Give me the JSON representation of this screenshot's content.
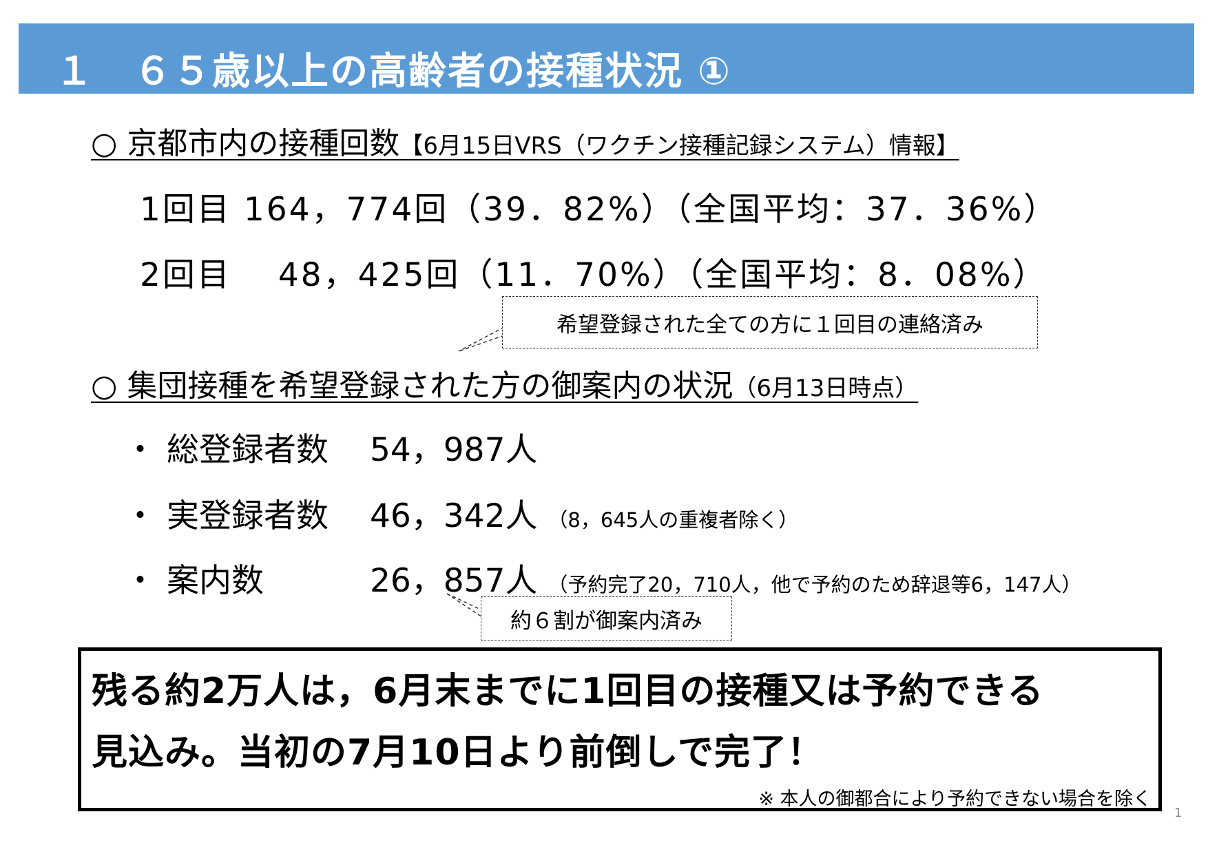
{
  "title": "１　６５歳以上の高齢者の接種状況 ①",
  "section1": {
    "heading": "○ 京都市内の接種回数",
    "source": "【6月15日VRS（ワクチン接種記録システム）情報】",
    "dose1": "1回目 164，774回（39．82%）（全国平均：37．36%）",
    "dose2": "2回目　 48，425回（11．70%）（全国平均：8．08%）"
  },
  "callout1": "希望登録された全ての方に１回目の連絡済み",
  "section2": {
    "heading": "○ 集団接種を希望登録された方の御案内の状況",
    "as_of": "（6月13日時点）",
    "items": [
      {
        "bullet": "・",
        "label": "総登録者数",
        "value": "54，987人",
        "note": ""
      },
      {
        "bullet": "・",
        "label": "実登録者数",
        "value": "46，342人",
        "note": "（8，645人の重複者除く）"
      },
      {
        "bullet": "・",
        "label": "案内数",
        "value": "26，857人",
        "note": "（予約完了20，710人，他で予約のため辞退等6，147人）"
      }
    ]
  },
  "callout2": "約６割が御案内済み",
  "summary": {
    "line1": "残る約2万人は，6月末までに1回目の接種又は予約できる",
    "line2": "見込み。当初の7月10日より前倒しで完了！",
    "note": "※ 本人の御都合により予約できない場合を除く"
  },
  "page_number": "1"
}
